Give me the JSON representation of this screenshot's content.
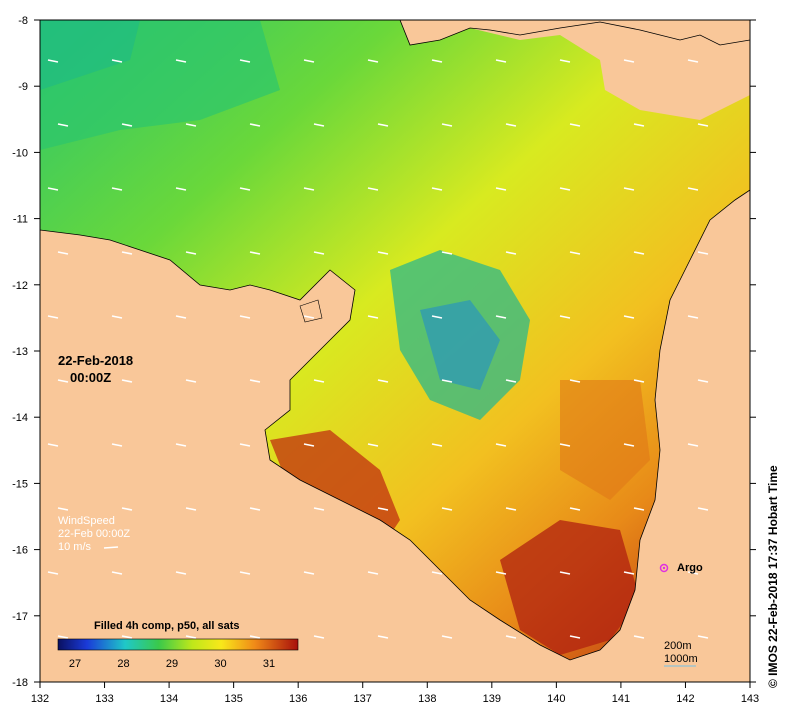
{
  "map": {
    "date": "22-Feb-2018",
    "time": "00:00Z",
    "credit": "© IMOS 22-Feb-2018 17:37 Hobart Time",
    "x_ticks": [
      "132",
      "133",
      "134",
      "135",
      "136",
      "137",
      "138",
      "139",
      "140",
      "141",
      "142",
      "143"
    ],
    "y_ticks": [
      "-8",
      "-9",
      "-10",
      "-11",
      "-12",
      "-13",
      "-14",
      "-15",
      "-16",
      "-17",
      "-18"
    ],
    "land_color": "#f9c799",
    "ocean_palette": [
      "#0a1a8c",
      "#1a6fd8",
      "#1fc1c1",
      "#3ac94a",
      "#8fe02a",
      "#e8f01a",
      "#f8b81a",
      "#e46818",
      "#a8100c"
    ]
  },
  "wind": {
    "label_title": "WindSpeed",
    "label_date": "22-Feb 00:00Z",
    "label_scale": "10 m/s"
  },
  "colorbar": {
    "title": "Filled 4h comp, p50, all sats",
    "ticks": [
      "27",
      "28",
      "29",
      "30",
      "31"
    ]
  },
  "argo": {
    "label": "Argo",
    "marker_color": "#e030e0"
  },
  "depth_legend": {
    "line1": "200m",
    "line2": "1000m"
  }
}
